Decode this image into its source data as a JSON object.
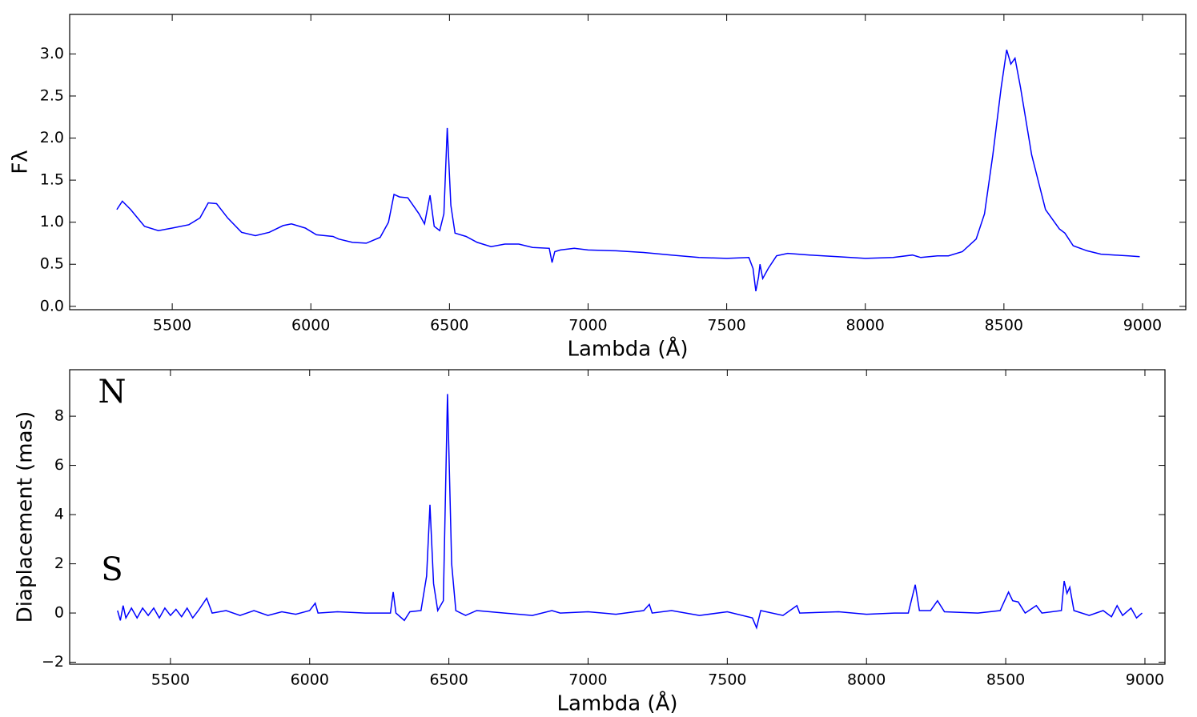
{
  "chart_data": [
    {
      "type": "line",
      "xlabel": "Lambda (Å)",
      "ylabel": "Fλ",
      "xlim": [
        5130,
        9156
      ],
      "ylim": [
        -0.04,
        3.47
      ],
      "xticks": [
        5500,
        6000,
        6500,
        7000,
        7500,
        8000,
        8500,
        9000
      ],
      "yticks": [
        {
          "value": 0,
          "label": "0.0"
        },
        {
          "value": 0.5,
          "label": "0.5"
        },
        {
          "value": 1,
          "label": "1.0"
        },
        {
          "value": 1.5,
          "label": "1.5"
        },
        {
          "value": 2,
          "label": "2.0"
        },
        {
          "value": 2.5,
          "label": "2.5"
        },
        {
          "value": 3,
          "label": "3.0"
        }
      ],
      "x": [
        5300,
        5320,
        5350,
        5400,
        5450,
        5500,
        5560,
        5600,
        5630,
        5660,
        5700,
        5750,
        5800,
        5850,
        5900,
        5930,
        5980,
        6020,
        6080,
        6100,
        6150,
        6200,
        6250,
        6280,
        6300,
        6320,
        6350,
        6390,
        6410,
        6430,
        6445,
        6465,
        6480,
        6492,
        6505,
        6520,
        6560,
        6600,
        6650,
        6700,
        6750,
        6800,
        6860,
        6870,
        6880,
        6900,
        6950,
        7000,
        7100,
        7200,
        7300,
        7400,
        7500,
        7580,
        7595,
        7605,
        7615,
        7620,
        7630,
        7650,
        7680,
        7720,
        7800,
        7900,
        8000,
        8100,
        8170,
        8200,
        8260,
        8300,
        8350,
        8400,
        8430,
        8460,
        8490,
        8510,
        8525,
        8540,
        8560,
        8600,
        8650,
        8700,
        8720,
        8750,
        8800,
        8850,
        8900,
        8950,
        8990
      ],
      "series": [
        {
          "color": "#0000ff",
          "values": [
            1.15,
            1.25,
            1.15,
            0.95,
            0.9,
            0.93,
            0.97,
            1.05,
            1.23,
            1.22,
            1.05,
            0.88,
            0.84,
            0.88,
            0.96,
            0.98,
            0.93,
            0.85,
            0.83,
            0.8,
            0.76,
            0.75,
            0.82,
            1.0,
            1.33,
            1.3,
            1.29,
            1.1,
            0.98,
            1.32,
            0.95,
            0.9,
            1.1,
            2.12,
            1.2,
            0.87,
            0.83,
            0.76,
            0.71,
            0.74,
            0.74,
            0.7,
            0.69,
            0.52,
            0.65,
            0.67,
            0.69,
            0.67,
            0.66,
            0.64,
            0.61,
            0.58,
            0.57,
            0.58,
            0.45,
            0.18,
            0.35,
            0.5,
            0.33,
            0.45,
            0.6,
            0.63,
            0.61,
            0.59,
            0.57,
            0.58,
            0.61,
            0.58,
            0.6,
            0.6,
            0.65,
            0.8,
            1.1,
            1.8,
            2.6,
            3.05,
            2.88,
            2.95,
            2.6,
            1.8,
            1.15,
            0.92,
            0.87,
            0.72,
            0.66,
            0.62,
            0.61,
            0.6,
            0.59
          ]
        }
      ]
    },
    {
      "type": "line",
      "xlabel": "Lambda (Å)",
      "ylabel": "Diaplacement (mas)",
      "annotations": [
        "N",
        "S"
      ],
      "xlim": [
        5138,
        9072
      ],
      "ylim": [
        -2.08,
        9.89
      ],
      "xticks": [
        5500,
        6000,
        6500,
        7000,
        7500,
        8000,
        8500,
        9000
      ],
      "yticks": [
        {
          "value": -2,
          "label": "−2"
        },
        0,
        2,
        4,
        6,
        8
      ],
      "x": [
        5310,
        5320,
        5330,
        5340,
        5360,
        5380,
        5400,
        5420,
        5440,
        5460,
        5480,
        5500,
        5520,
        5540,
        5560,
        5580,
        5600,
        5630,
        5650,
        5700,
        5750,
        5800,
        5850,
        5900,
        5950,
        6000,
        6020,
        6030,
        6100,
        6200,
        6290,
        6300,
        6310,
        6340,
        6360,
        6400,
        6420,
        6432,
        6445,
        6460,
        6480,
        6495,
        6510,
        6525,
        6560,
        6600,
        6700,
        6800,
        6870,
        6900,
        7000,
        7100,
        7200,
        7220,
        7230,
        7300,
        7400,
        7500,
        7590,
        7605,
        7620,
        7700,
        7750,
        7760,
        7900,
        8000,
        8100,
        8150,
        8175,
        8190,
        8230,
        8255,
        8280,
        8400,
        8480,
        8510,
        8525,
        8545,
        8570,
        8610,
        8630,
        8700,
        8710,
        8720,
        8730,
        8745,
        8800,
        8850,
        8880,
        8900,
        8920,
        8950,
        8970,
        8990
      ],
      "series": [
        {
          "color": "#0000ff",
          "values": [
            0.1,
            -0.3,
            0.3,
            -0.2,
            0.2,
            -0.2,
            0.2,
            -0.1,
            0.2,
            -0.2,
            0.2,
            -0.1,
            0.15,
            -0.15,
            0.2,
            -0.2,
            0.1,
            0.6,
            0.0,
            0.1,
            -0.1,
            0.1,
            -0.1,
            0.05,
            -0.05,
            0.1,
            0.4,
            0.0,
            0.05,
            0.0,
            0.0,
            0.85,
            0.0,
            -0.3,
            0.05,
            0.1,
            1.5,
            4.4,
            1.2,
            0.1,
            0.5,
            8.9,
            2.0,
            0.1,
            -0.1,
            0.1,
            0.0,
            -0.1,
            0.1,
            0.0,
            0.05,
            -0.05,
            0.1,
            0.35,
            0.0,
            0.1,
            -0.1,
            0.05,
            -0.2,
            -0.6,
            0.1,
            -0.1,
            0.3,
            0.0,
            0.05,
            -0.05,
            0.0,
            0.0,
            1.15,
            0.1,
            0.1,
            0.5,
            0.05,
            0.0,
            0.1,
            0.85,
            0.5,
            0.45,
            0.0,
            0.3,
            0.0,
            0.1,
            1.3,
            0.8,
            1.05,
            0.1,
            -0.1,
            0.1,
            -0.15,
            0.3,
            -0.1,
            0.2,
            -0.2,
            0.0
          ]
        }
      ]
    }
  ]
}
